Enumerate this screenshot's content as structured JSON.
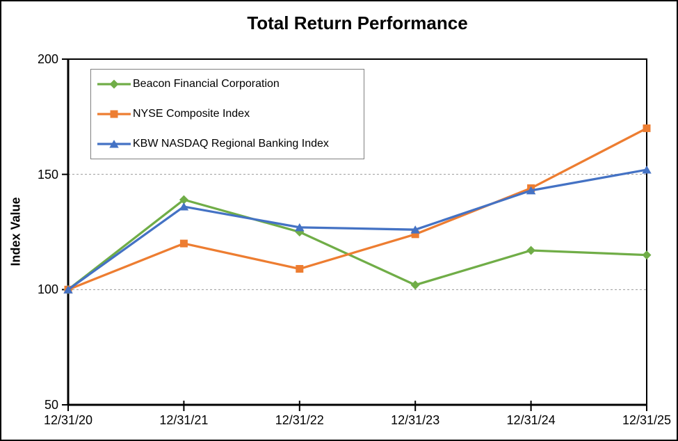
{
  "chart_data": {
    "type": "line",
    "title": "Total Return Performance",
    "xlabel": "",
    "ylabel": "Index Value",
    "categories": [
      "12/31/20",
      "12/31/21",
      "12/31/22",
      "12/31/23",
      "12/31/24",
      "12/31/25"
    ],
    "series": [
      {
        "name": "Beacon Financial Corporation",
        "color": "#70AD47",
        "marker": "diamond",
        "values": [
          100,
          139,
          125,
          102,
          117,
          115
        ]
      },
      {
        "name": "NYSE Composite Index",
        "color": "#ED7D31",
        "marker": "square",
        "values": [
          100,
          120,
          109,
          124,
          144,
          170
        ]
      },
      {
        "name": "KBW NASDAQ Regional Banking Index",
        "color": "#4472C4",
        "marker": "triangle",
        "values": [
          100,
          136,
          127,
          126,
          143,
          152
        ]
      }
    ],
    "ylim": [
      50,
      200
    ],
    "y_ticks": [
      50,
      100,
      150,
      200
    ],
    "gridline_values": [
      100,
      150
    ],
    "grid": "horizontal-dashed",
    "legend_position": "top-left"
  },
  "style_colors": {
    "axis": "#000000",
    "gridline": "#999999",
    "legend_border": "#7F7F7F",
    "background": "#FFFFFF",
    "text": "#000000"
  }
}
